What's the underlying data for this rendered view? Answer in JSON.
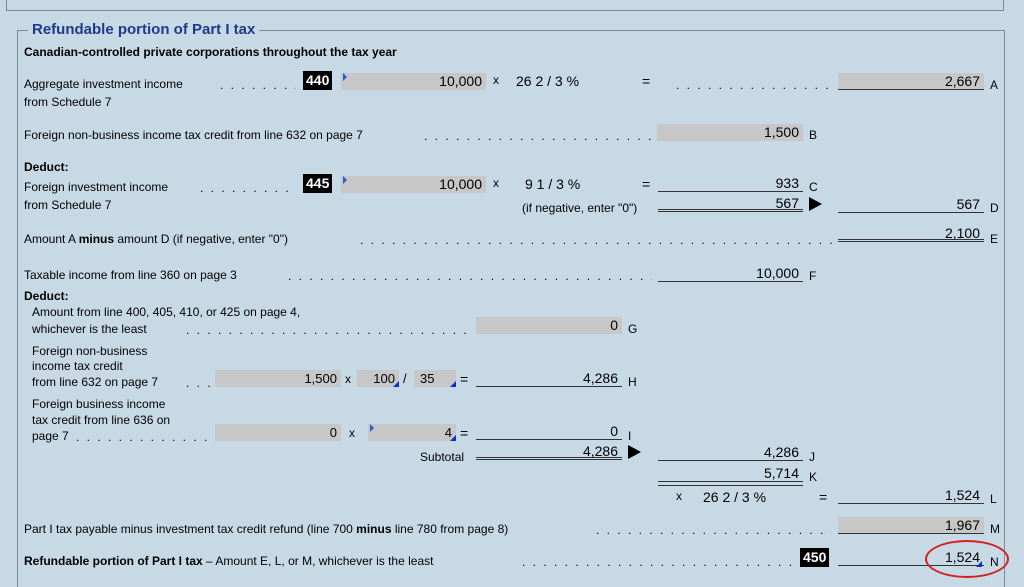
{
  "section": {
    "title": "Refundable portion of Part I tax",
    "subtitle": "Canadian-controlled private corporations throughout the tax year"
  },
  "rows": {
    "a": {
      "label1": "Aggregate investment income",
      "label2": "from Schedule 7",
      "code": "440",
      "input": "10,000",
      "op": "x",
      "rate": "26   2  /   3 %",
      "eq": "=",
      "result": "2,667",
      "letter": "A"
    },
    "b": {
      "label": "Foreign non-business income tax credit from line 632 on page 7",
      "value": "1,500",
      "letter": "B"
    },
    "deduct1": "Deduct:",
    "c": {
      "label1": "Foreign investment income",
      "label2": "from Schedule 7",
      "code": "445",
      "input": "10,000",
      "op": "x",
      "rate": "9   1  /   3 %",
      "eq": "=",
      "result": "933",
      "letter": "C"
    },
    "d": {
      "note": "(if negative, enter \"0\")",
      "subtotal": "567",
      "value": "567",
      "letter": "D"
    },
    "e": {
      "label_pre": "Amount A ",
      "label_bold": "minus",
      "label_post": " amount D (if negative, enter \"0\")",
      "value": "2,100",
      "letter": "E"
    },
    "f": {
      "label": "Taxable income from line 360 on page 3",
      "value": "10,000",
      "letter": "F"
    },
    "deduct2": "Deduct:",
    "g": {
      "label1": "Amount from line 400, 405, 410, or 425 on page 4,",
      "label2": "whichever is the least",
      "value": "0",
      "letter": "G"
    },
    "h": {
      "label1": "Foreign non-business",
      "label2": "income tax credit",
      "label3": "from line 632 on page 7",
      "input": "1,500",
      "op": "x",
      "num": "100",
      "slash": "/",
      "den": "35",
      "eq": "=",
      "value": "4,286",
      "letter": "H"
    },
    "i": {
      "label1": "Foreign business income",
      "label2": "tax credit from line 636 on",
      "label3": "page 7",
      "input": "0",
      "op": "x",
      "factor": "4",
      "eq": "=",
      "value": "0",
      "letter": "I"
    },
    "subtotal": {
      "label": "Subtotal",
      "value": "4,286"
    },
    "j": {
      "value": "4,286",
      "letter": "J"
    },
    "k": {
      "value": "5,714",
      "letter": "K"
    },
    "l": {
      "op": "x",
      "rate": "26   2  /   3 %",
      "eq": "=",
      "value": "1,524",
      "letter": "L"
    },
    "m": {
      "label_pre": "Part I tax payable minus investment tax credit refund (line 700 ",
      "label_bold": "minus",
      "label_post": " line 780 from page 8)",
      "value": "1,967",
      "letter": "M"
    },
    "n": {
      "label_bold": "Refundable portion of Part I tax",
      "label_post": " – Amount E, L, or M, whichever is the least",
      "code": "450",
      "value": "1,524",
      "letter": "N"
    }
  },
  "colors": {
    "background": "#c8d9e6",
    "field": "#c7c7c7",
    "title": "#1e3a8a",
    "highlight_circle": "#d42020"
  }
}
